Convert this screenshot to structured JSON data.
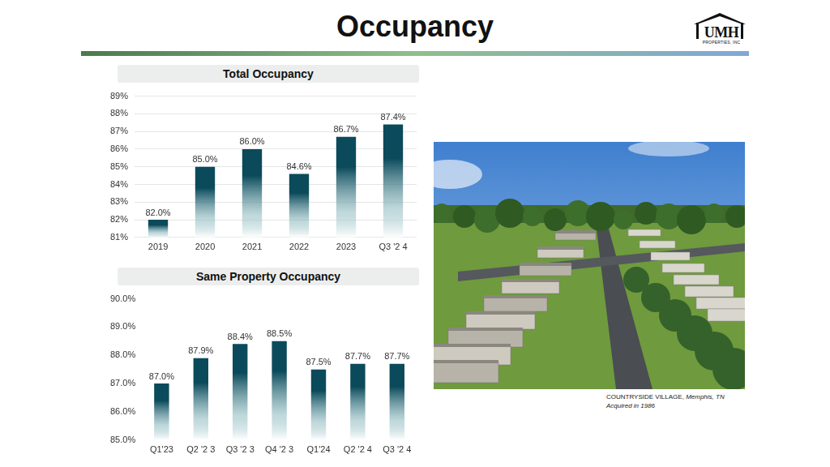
{
  "title": "Occupancy",
  "logo": {
    "name": "UMH",
    "sub": "PROPERTIES, INC"
  },
  "photo_caption": {
    "name": "COUNTRYSIDE VILLAGE,",
    "place": "Memphis, TN",
    "note": "Acquired in 1986"
  },
  "chart_data": [
    {
      "type": "bar",
      "title": "Total Occupancy",
      "categories": [
        "2019",
        "2020",
        "2021",
        "2022",
        "2023",
        "Q3 '2 4"
      ],
      "values": [
        82.0,
        85.0,
        86.0,
        84.6,
        86.7,
        87.4
      ],
      "value_labels": [
        "82.0%",
        "85.0%",
        "86.0%",
        "84.6%",
        "86.7%",
        "87.4%"
      ],
      "color": "#0b4a5b",
      "ylim": [
        81,
        89
      ],
      "yticks": [
        {
          "value": 81,
          "label": "81%"
        },
        {
          "value": 82,
          "label": "82%"
        },
        {
          "value": 83,
          "label": "83%"
        },
        {
          "value": 84,
          "label": "84%"
        },
        {
          "value": 85,
          "label": "85%"
        },
        {
          "value": 86,
          "label": "86%"
        },
        {
          "value": 87,
          "label": "87%"
        },
        {
          "value": 88,
          "label": "88%"
        },
        {
          "value": 89,
          "label": "89%"
        }
      ],
      "grid": true,
      "data_labels": true
    },
    {
      "type": "bar",
      "title": "Same Property Occupancy",
      "categories": [
        "Q1'23",
        "Q2 '2 3",
        "Q3 '2 3",
        "Q4 '2 3",
        "Q1'24",
        "Q2 '2 4",
        "Q3 '2 4"
      ],
      "values": [
        87.0,
        87.9,
        88.4,
        88.5,
        87.5,
        87.7,
        87.7
      ],
      "value_labels": [
        "87.0%",
        "87.9%",
        "88.4%",
        "88.5%",
        "87.5%",
        "87.7%",
        "87.7%"
      ],
      "color": "#0b4a5b",
      "ylim": [
        85,
        90
      ],
      "yticks": [
        {
          "value": 85,
          "label": "85.0%"
        },
        {
          "value": 86,
          "label": "86.0%"
        },
        {
          "value": 87,
          "label": "87.0%"
        },
        {
          "value": 88,
          "label": "88.0%"
        },
        {
          "value": 89,
          "label": "89.0%"
        },
        {
          "value": 90,
          "label": "90.0%"
        }
      ],
      "grid": false,
      "data_labels": true
    }
  ]
}
